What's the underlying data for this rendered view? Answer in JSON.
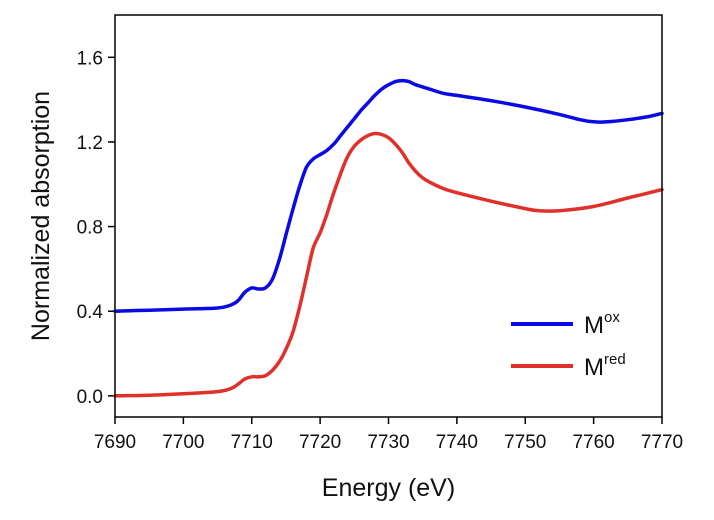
{
  "chart_data": {
    "type": "line",
    "title": "",
    "xlabel": "Energy (eV)",
    "ylabel": "Normalized absorption",
    "xlim": [
      7690,
      7770
    ],
    "ylim": [
      -0.1,
      1.8
    ],
    "x_ticks": [
      7690,
      7700,
      7710,
      7720,
      7730,
      7740,
      7750,
      7760,
      7770
    ],
    "y_ticks": [
      0.0,
      0.4,
      0.8,
      1.2,
      1.6
    ],
    "x_tick_labels": [
      "7690",
      "7700",
      "7710",
      "7720",
      "7730",
      "7740",
      "7750",
      "7760",
      "7770"
    ],
    "y_tick_labels": [
      "0.0",
      "0.4",
      "0.8",
      "1.2",
      "1.6"
    ],
    "grid": false,
    "legend_position": "bottom-right",
    "series": [
      {
        "name": "M",
        "name_superscript": "ox",
        "color": "#0a0ae6",
        "x": [
          7690,
          7695,
          7700,
          7705,
          7707,
          7708,
          7709,
          7710,
          7711,
          7712,
          7713,
          7714,
          7715,
          7716,
          7717,
          7718,
          7719,
          7720,
          7721,
          7722,
          7723,
          7724,
          7725,
          7726,
          7727,
          7728,
          7729,
          7730,
          7731,
          7732,
          7733,
          7734,
          7736,
          7738,
          7740,
          7745,
          7750,
          7755,
          7758,
          7760,
          7762,
          7765,
          7768,
          7770
        ],
        "y": [
          0.4,
          0.405,
          0.41,
          0.415,
          0.43,
          0.45,
          0.49,
          0.51,
          0.505,
          0.51,
          0.55,
          0.64,
          0.76,
          0.88,
          0.99,
          1.08,
          1.12,
          1.14,
          1.16,
          1.19,
          1.23,
          1.27,
          1.31,
          1.35,
          1.385,
          1.42,
          1.45,
          1.47,
          1.485,
          1.49,
          1.485,
          1.47,
          1.45,
          1.43,
          1.42,
          1.395,
          1.365,
          1.33,
          1.305,
          1.295,
          1.295,
          1.305,
          1.32,
          1.335
        ]
      },
      {
        "name": "M",
        "name_superscript": "red",
        "color": "#e0302a",
        "x": [
          7690,
          7695,
          7700,
          7705,
          7707,
          7708,
          7709,
          7710,
          7711,
          7712,
          7713,
          7714,
          7715,
          7716,
          7717,
          7718,
          7719,
          7720,
          7721,
          7722,
          7723,
          7724,
          7725,
          7726,
          7727,
          7728,
          7729,
          7730,
          7731,
          7732,
          7733,
          7734,
          7735,
          7736,
          7738,
          7740,
          7745,
          7750,
          7752,
          7755,
          7760,
          7765,
          7770
        ],
        "y": [
          0.0,
          0.003,
          0.01,
          0.02,
          0.035,
          0.055,
          0.08,
          0.09,
          0.09,
          0.095,
          0.12,
          0.16,
          0.22,
          0.3,
          0.42,
          0.56,
          0.7,
          0.77,
          0.86,
          0.96,
          1.05,
          1.13,
          1.18,
          1.21,
          1.23,
          1.24,
          1.235,
          1.22,
          1.19,
          1.15,
          1.1,
          1.06,
          1.03,
          1.01,
          0.98,
          0.96,
          0.92,
          0.885,
          0.875,
          0.875,
          0.895,
          0.935,
          0.975
        ]
      }
    ]
  }
}
